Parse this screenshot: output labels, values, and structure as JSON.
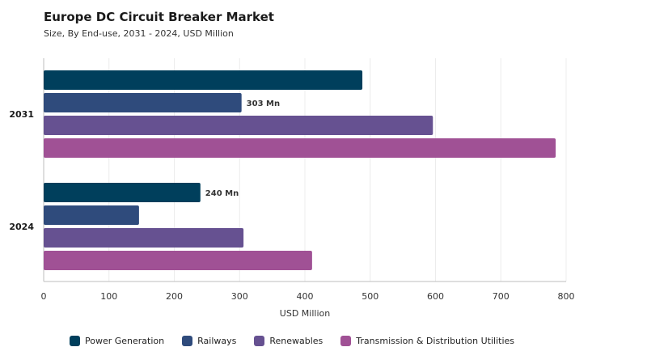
{
  "title": "Europe DC Circuit Breaker Market",
  "subtitle": "Size, By End-use, 2031 - 2024, USD Million",
  "chart_data": {
    "type": "bar",
    "orientation": "horizontal",
    "title": "Europe DC Circuit Breaker Market",
    "subtitle": "Size, By End-use, 2031 - 2024, USD Million",
    "xlabel": "USD Million",
    "ylabel": "",
    "xlim": [
      0,
      800
    ],
    "x_ticks": [
      "0",
      "100",
      "200",
      "300",
      "400",
      "500",
      "600",
      "700",
      "800"
    ],
    "categories": [
      "2031",
      "2024"
    ],
    "series": [
      {
        "name": "Power Generation",
        "color": "#003f5c",
        "values": [
          488,
          240
        ]
      },
      {
        "name": "Railways",
        "color": "#2f4b7c",
        "values": [
          303,
          146
        ]
      },
      {
        "name": "Renewables",
        "color": "#665191",
        "values": [
          596,
          306
        ]
      },
      {
        "name": "Transmission & Distribution Utilities",
        "color": "#a05195",
        "values": [
          784,
          411
        ]
      }
    ],
    "data_labels": [
      {
        "category": "2031",
        "series": "Railways",
        "text": "303 Mn"
      },
      {
        "category": "2024",
        "series": "Power Generation",
        "text": "240 Mn"
      }
    ],
    "grid": true,
    "legend_position": "bottom"
  }
}
